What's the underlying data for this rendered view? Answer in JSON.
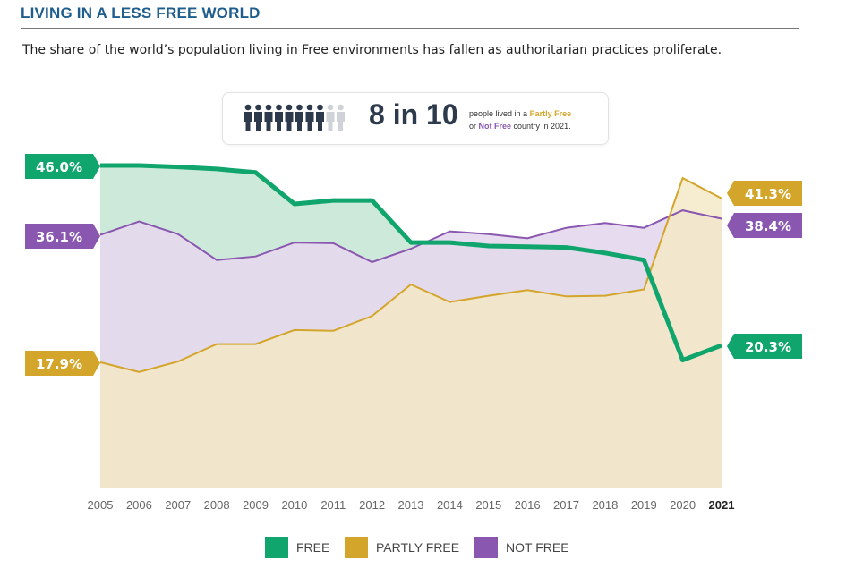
{
  "header": {
    "title": "LIVING IN A LESS FREE WORLD",
    "subtitle": "The share of the world’s population living in Free environments has fallen as authoritarian practices proliferate."
  },
  "callout": {
    "big_text": "8 in 10",
    "line1_pre": "people lived in a ",
    "line1_highlight": "Partly Free",
    "line2_pre": "or ",
    "line2_highlight": "Not Free",
    "line2_post": " country in 2021.",
    "people_total": 10,
    "people_highlighted": 8
  },
  "chart_data": {
    "type": "area",
    "categories": [
      "2005",
      "2006",
      "2007",
      "2008",
      "2009",
      "2010",
      "2011",
      "2012",
      "2013",
      "2014",
      "2015",
      "2016",
      "2017",
      "2018",
      "2019",
      "2020",
      "2021"
    ],
    "highlight_category": "2021",
    "ylim": [
      0,
      100
    ],
    "series": [
      {
        "name": "PARTLY FREE",
        "color": "#d3a52a",
        "fill": "#f4e8c4",
        "values": [
          17.9,
          16.5,
          18.0,
          20.5,
          20.5,
          22.5,
          22.4,
          24.5,
          29.0,
          26.5,
          27.4,
          28.2,
          27.3,
          27.4,
          28.3,
          44.2,
          41.3
        ]
      },
      {
        "name": "NOT FREE",
        "color": "#8a57b0",
        "fill": "#e5d8ee",
        "values": [
          36.1,
          38.0,
          36.2,
          32.5,
          33.0,
          35.0,
          34.9,
          32.2,
          34.1,
          36.6,
          36.2,
          35.6,
          37.1,
          37.8,
          37.1,
          39.6,
          38.4
        ]
      },
      {
        "name": "FREE",
        "color": "#10a56c",
        "fill": "#cde9d9",
        "values": [
          46.0,
          46.0,
          45.8,
          45.5,
          45.0,
          40.5,
          41.0,
          41.0,
          35.0,
          35.0,
          34.5,
          34.4,
          34.3,
          33.5,
          32.5,
          18.2,
          20.3
        ]
      }
    ],
    "start_labels": {
      "FREE": "46.0%",
      "NOT FREE": "36.1%",
      "PARTLY FREE": "17.9%"
    },
    "end_labels": {
      "PARTLY FREE": "41.3%",
      "NOT FREE": "38.4%",
      "FREE": "20.3%"
    },
    "legend": [
      "FREE",
      "PARTLY FREE",
      "NOT FREE"
    ],
    "legend_position": "bottom-center"
  }
}
